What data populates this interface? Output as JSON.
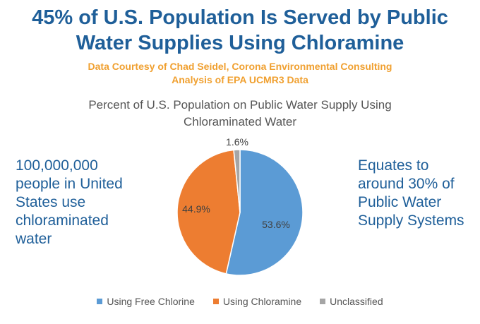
{
  "header": {
    "title_line1": "45% of U.S. Population Is Served by Public",
    "title_line2": "Water Supplies Using Chloramine",
    "credit_line1": "Data Courtesy of Chad Seidel, Corona Environmental Consulting",
    "credit_line2": "Analysis of EPA UCMR3 Data"
  },
  "left_note": [
    "100,000,000",
    "people in United",
    "States use",
    "chloraminated",
    "water"
  ],
  "right_note": [
    "Equates to",
    "around 30% of",
    "Public Water",
    "Supply Systems"
  ],
  "chart_data": {
    "type": "pie",
    "title_line1": "Percent of U.S. Population on Public Water Supply Using",
    "title_line2": "Chloraminated Water",
    "start": "top",
    "direction": "clockwise",
    "legend_position": "bottom",
    "slices": [
      {
        "name": "Using Free Chlorine",
        "value": 53.6,
        "label": "53.6%",
        "color": "#5b9bd5"
      },
      {
        "name": "Using Chloramine",
        "value": 44.9,
        "label": "44.9%",
        "color": "#ed7d31"
      },
      {
        "name": "Unclassified",
        "value": 1.6,
        "label": "1.6%",
        "color": "#a5a5a5"
      }
    ]
  }
}
